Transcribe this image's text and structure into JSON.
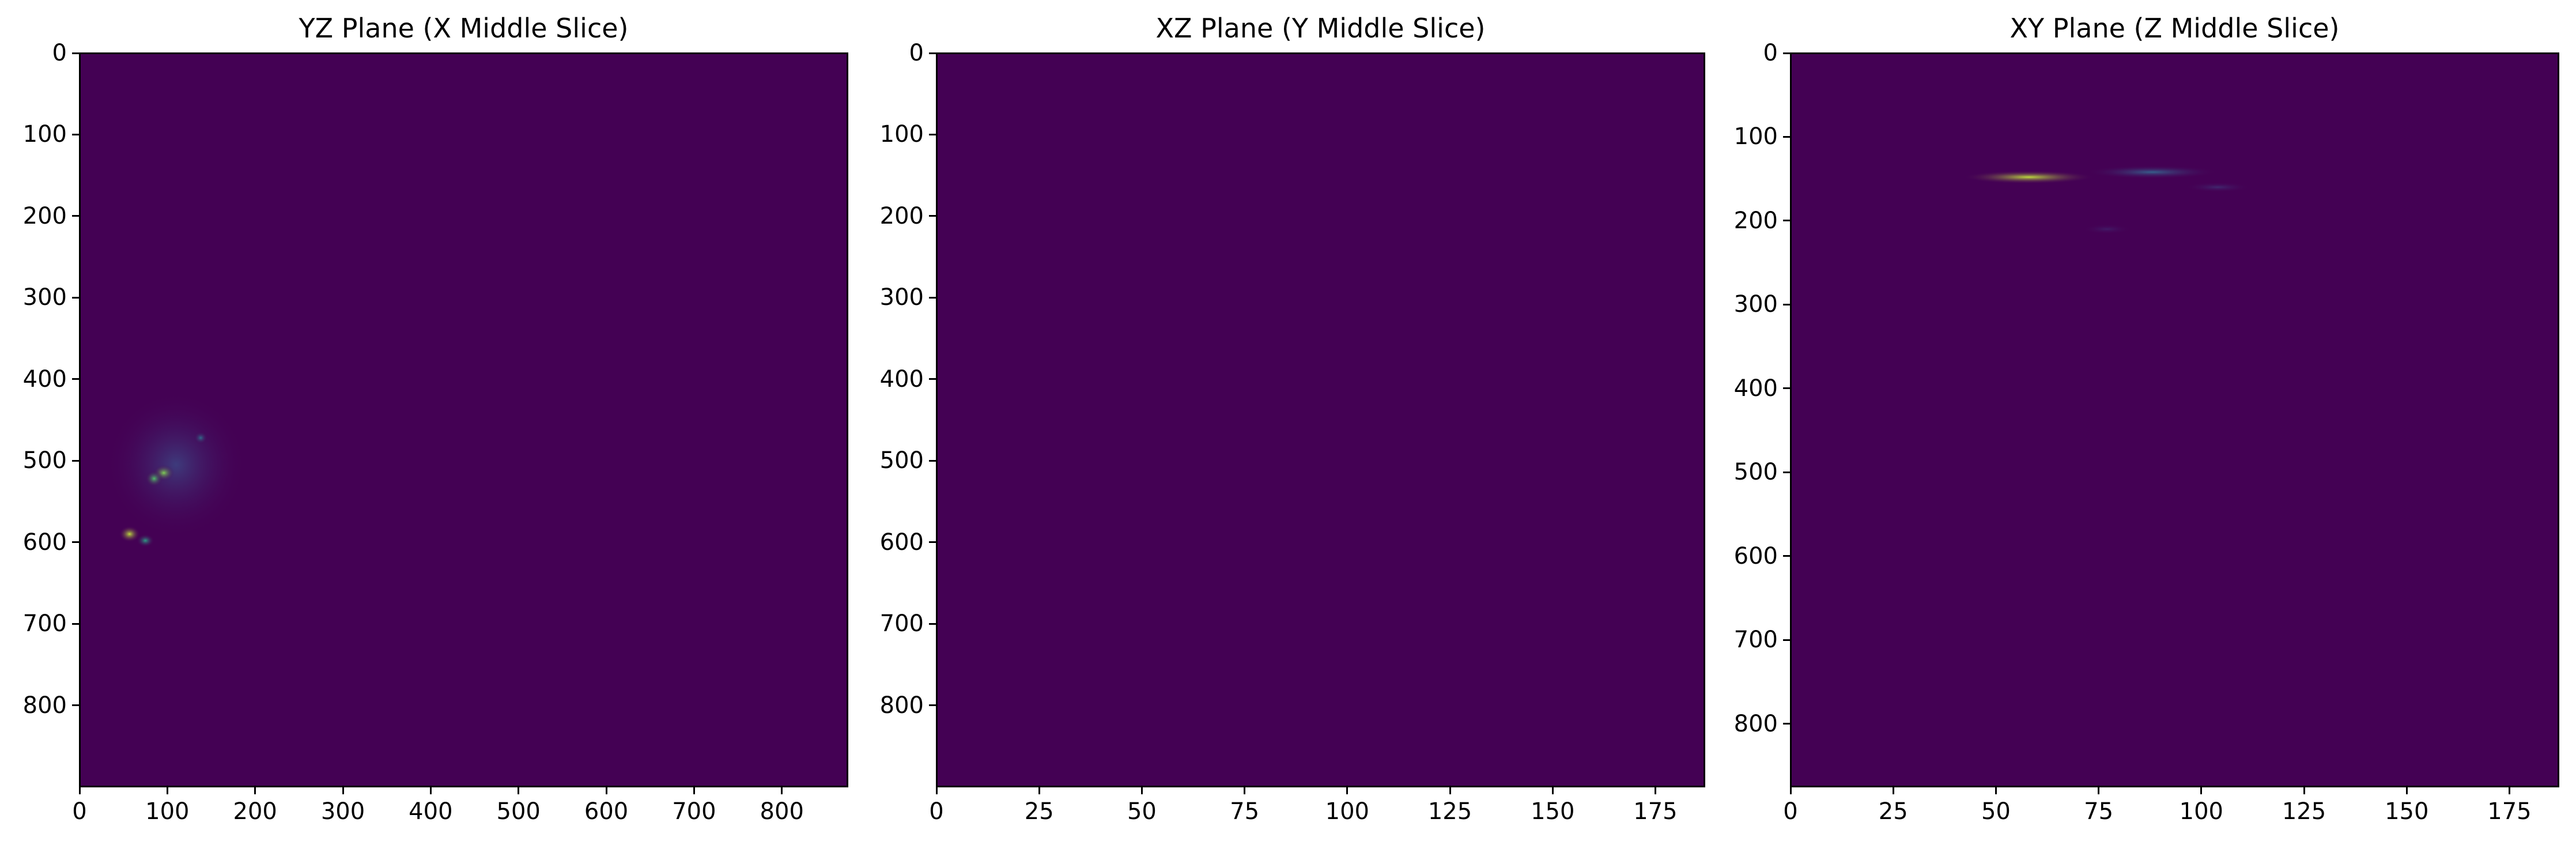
{
  "chart_data": [
    {
      "type": "heatmap",
      "title": "YZ Plane (X Middle Slice)",
      "colormap": "viridis",
      "background_color": "#440154",
      "x_range": [
        0,
        875
      ],
      "y_range": [
        0,
        900
      ],
      "y_inverted": true,
      "x_ticks": [
        0,
        100,
        200,
        300,
        400,
        500,
        600,
        700,
        800
      ],
      "y_ticks": [
        0,
        100,
        200,
        300,
        400,
        500,
        600,
        700,
        800
      ],
      "features": [
        {
          "x": 110,
          "y": 505,
          "sx": 40,
          "sy": 45,
          "intensity": 0.18
        },
        {
          "x": 57,
          "y": 590,
          "sx": 6,
          "sy": 5,
          "intensity": 0.9
        },
        {
          "x": 96,
          "y": 515,
          "sx": 6,
          "sy": 5,
          "intensity": 0.8
        },
        {
          "x": 85,
          "y": 522,
          "sx": 5,
          "sy": 5,
          "intensity": 0.7
        },
        {
          "x": 75,
          "y": 598,
          "sx": 5,
          "sy": 4,
          "intensity": 0.55
        },
        {
          "x": 138,
          "y": 472,
          "sx": 4,
          "sy": 4,
          "intensity": 0.35
        }
      ]
    },
    {
      "type": "heatmap",
      "title": "XZ Plane (Y Middle Slice)",
      "colormap": "viridis",
      "background_color": "#440154",
      "x_range": [
        0,
        187
      ],
      "y_range": [
        0,
        900
      ],
      "y_inverted": true,
      "x_ticks": [
        0,
        25,
        50,
        75,
        100,
        125,
        150,
        175
      ],
      "y_ticks": [
        0,
        100,
        200,
        300,
        400,
        500,
        600,
        700,
        800
      ],
      "features": []
    },
    {
      "type": "heatmap",
      "title": "XY Plane (Z Middle Slice)",
      "colormap": "viridis",
      "background_color": "#440154",
      "x_range": [
        0,
        187
      ],
      "y_range": [
        0,
        875
      ],
      "y_inverted": true,
      "x_ticks": [
        0,
        25,
        50,
        75,
        100,
        125,
        150,
        175
      ],
      "y_ticks": [
        0,
        100,
        200,
        300,
        400,
        500,
        600,
        700,
        800
      ],
      "features": [
        {
          "x": 58,
          "y": 148,
          "sx": 8,
          "sy": 4,
          "intensity": 0.9
        },
        {
          "x": 88,
          "y": 142,
          "sx": 8,
          "sy": 4,
          "intensity": 0.3
        },
        {
          "x": 104,
          "y": 160,
          "sx": 4,
          "sy": 3,
          "intensity": 0.12
        },
        {
          "x": 77,
          "y": 210,
          "sx": 3,
          "sy": 3,
          "intensity": 0.08
        }
      ]
    }
  ]
}
